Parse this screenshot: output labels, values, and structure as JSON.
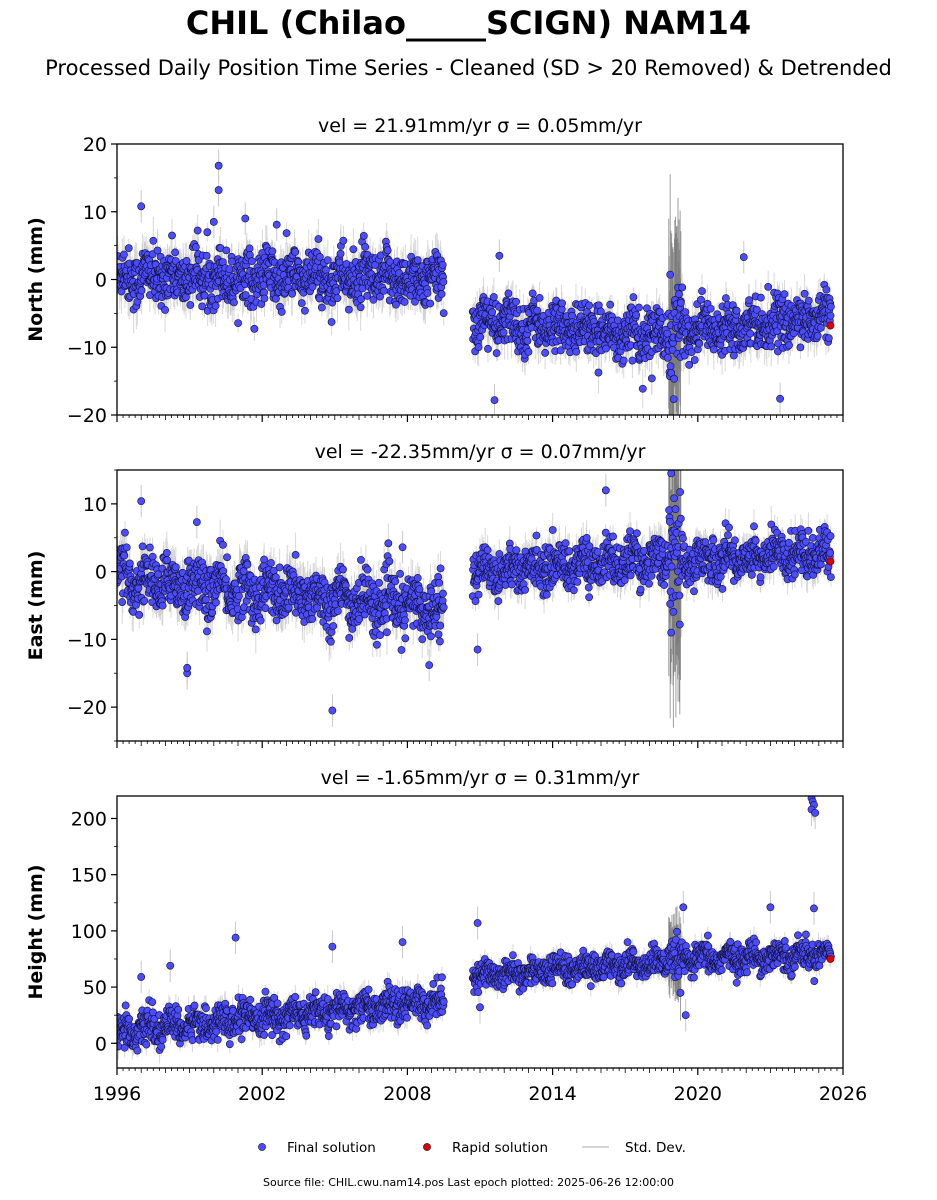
{
  "title": "CHIL (Chilao_____SCIGN) NAM14",
  "subtitle": "Processed Daily Position Time Series - Cleaned (SD > 20 Removed) & Detrended",
  "footer": "Source file: CHIL.cwu.nam14.pos  Last epoch plotted: 2025-06-26 12:00:00",
  "colors": {
    "final_solution": "#4b4bff",
    "rapid_solution": "#e00000",
    "std_dev": "#c8c8c8"
  },
  "chart_data": [
    {
      "type": "scatter",
      "title": "vel = 21.91mm/yr   σ = 0.05mm/yr",
      "ylabel": "North (mm)",
      "xlim": [
        1996,
        2026
      ],
      "ylim": [
        -20,
        20
      ],
      "yticks": [
        -20,
        -10,
        0,
        10,
        20
      ],
      "ytick_labels": [
        "−20",
        "−10",
        "0",
        "10",
        "20"
      ],
      "xtick_labels": [],
      "segments": [
        {
          "start": 1996.0,
          "end": 2009.5,
          "trend_start": 0.5,
          "trend_end": 0.0,
          "noise": 2.0,
          "seasonal": 1.0
        },
        {
          "start": 2010.7,
          "end": 2018.8,
          "trend_start": -6.0,
          "trend_end": -8.5,
          "noise": 1.8,
          "seasonal": 1.2
        },
        {
          "start": 2018.8,
          "end": 2019.3,
          "trend_start": -8.5,
          "trend_end": -7.0,
          "noise": 4.5,
          "seasonal": 0.0
        },
        {
          "start": 2019.3,
          "end": 2025.5,
          "trend_start": -7.5,
          "trend_end": -5.5,
          "noise": 1.7,
          "seasonal": 1.0
        }
      ],
      "outliers": [
        [
          2000.2,
          16.8
        ],
        [
          2000.2,
          13.2
        ],
        [
          2001.3,
          9.0
        ],
        [
          2000.0,
          8.5
        ],
        [
          1997.0,
          10.8
        ],
        [
          2002.6,
          8.1
        ],
        [
          2011.6,
          -17.8
        ],
        [
          2023.4,
          -17.6
        ],
        [
          2021.9,
          3.3
        ],
        [
          2011.8,
          3.5
        ],
        [
          2018.1,
          -14.6
        ]
      ],
      "rapid": [
        {
          "x": 2025.48,
          "y": -6.8
        }
      ]
    },
    {
      "type": "scatter",
      "title": "vel = -22.35mm/yr   σ = 0.07mm/yr",
      "ylabel": "East (mm)",
      "xlim": [
        1996,
        2026
      ],
      "ylim": [
        -25,
        15
      ],
      "yticks": [
        -20,
        -10,
        0,
        10
      ],
      "ytick_labels": [
        "−20",
        "−10",
        "0",
        "10"
      ],
      "xtick_labels": [],
      "segments": [
        {
          "start": 1996.0,
          "end": 2009.5,
          "trend_start": -1.0,
          "trend_end": -5.5,
          "noise": 2.0,
          "seasonal": 1.3
        },
        {
          "start": 2010.7,
          "end": 2018.8,
          "trend_start": 0.0,
          "trend_end": 2.0,
          "noise": 1.6,
          "seasonal": 1.0
        },
        {
          "start": 2018.8,
          "end": 2019.3,
          "trend_start": 2.0,
          "trend_end": 2.0,
          "noise": 6.0,
          "seasonal": 0.0
        },
        {
          "start": 2019.3,
          "end": 2025.5,
          "trend_start": 1.5,
          "trend_end": 3.0,
          "noise": 1.6,
          "seasonal": 0.9
        }
      ],
      "outliers": [
        [
          1997.0,
          10.4
        ],
        [
          1999.3,
          7.3
        ],
        [
          2004.9,
          -20.5
        ],
        [
          1998.9,
          -15.0
        ],
        [
          1998.9,
          -14.2
        ],
        [
          2016.2,
          12.0
        ],
        [
          2008.9,
          -13.8
        ],
        [
          2010.9,
          -11.5
        ],
        [
          2007.8,
          3.6
        ],
        [
          2018.9,
          14.5
        ],
        [
          2018.9,
          -9.0
        ]
      ],
      "rapid": [
        {
          "x": 2025.48,
          "y": 1.5
        }
      ]
    },
    {
      "type": "scatter",
      "title": "vel = -1.65mm/yr   σ = 0.31mm/yr",
      "ylabel": "Height (mm)",
      "xlim": [
        1996,
        2026
      ],
      "ylim": [
        -22,
        220
      ],
      "yticks": [
        0,
        50,
        100,
        150,
        200
      ],
      "ytick_labels": [
        "0",
        "50",
        "100",
        "150",
        "200"
      ],
      "xtick_labels": [
        "1996",
        "2002",
        "2008",
        "2014",
        "2020",
        "2026"
      ],
      "segments": [
        {
          "start": 1996.0,
          "end": 2009.5,
          "trend_start": 10.0,
          "trend_end": 38.0,
          "noise": 7.0,
          "seasonal": 5.0
        },
        {
          "start": 2010.7,
          "end": 2018.8,
          "trend_start": 60.0,
          "trend_end": 72.0,
          "noise": 6.0,
          "seasonal": 4.0
        },
        {
          "start": 2018.8,
          "end": 2019.3,
          "trend_start": 72.0,
          "trend_end": 75.0,
          "noise": 10.0,
          "seasonal": 0.0
        },
        {
          "start": 2019.3,
          "end": 2025.5,
          "trend_start": 74.0,
          "trend_end": 80.0,
          "noise": 6.0,
          "seasonal": 4.0
        }
      ],
      "outliers": [
        [
          2000.9,
          94.0
        ],
        [
          2004.9,
          86.0
        ],
        [
          2007.8,
          90.0
        ],
        [
          2010.9,
          107.0
        ],
        [
          2019.4,
          121.0
        ],
        [
          2023.0,
          121.0
        ],
        [
          2024.8,
          120.0
        ],
        [
          2024.7,
          218.0
        ],
        [
          2024.75,
          215.0
        ],
        [
          2024.8,
          212.0
        ],
        [
          2024.7,
          208.0
        ],
        [
          2024.85,
          205.0
        ],
        [
          2019.5,
          25.0
        ],
        [
          1997.0,
          59.0
        ],
        [
          1998.2,
          69.0
        ],
        [
          2011.0,
          32.0
        ]
      ],
      "rapid": [
        {
          "x": 2025.48,
          "y": 75.0
        }
      ]
    }
  ],
  "legend": {
    "position": "bottom-center",
    "items": [
      {
        "label": "Final solution",
        "kind": "marker",
        "color": "#4b4bff"
      },
      {
        "label": "Rapid solution",
        "kind": "marker",
        "color": "#e00000"
      },
      {
        "label": "Std. Dev.",
        "kind": "line",
        "color": "#c8c8c8"
      }
    ]
  }
}
